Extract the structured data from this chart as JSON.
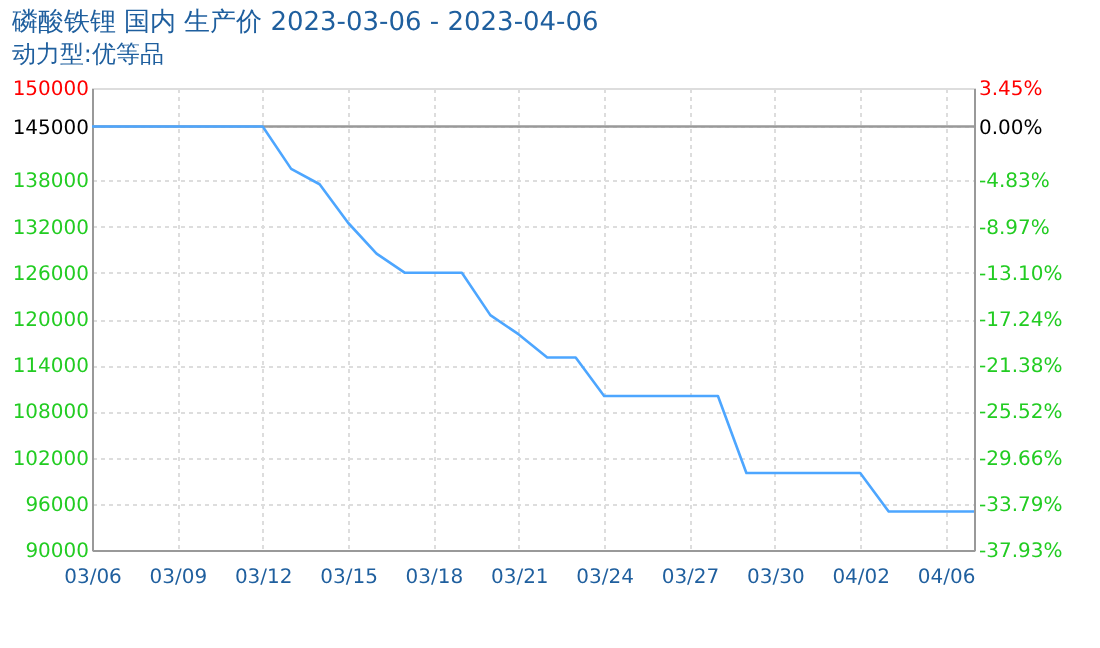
{
  "chart_data": {
    "type": "line",
    "title": "磷酸铁锂 国内 生产价 2023-03-06 - 2023-04-06",
    "subtitle": "动力型:优等品",
    "x": [
      "2023-03-06",
      "2023-03-07",
      "2023-03-08",
      "2023-03-09",
      "2023-03-10",
      "2023-03-11",
      "2023-03-12",
      "2023-03-13",
      "2023-03-14",
      "2023-03-15",
      "2023-03-16",
      "2023-03-17",
      "2023-03-18",
      "2023-03-19",
      "2023-03-20",
      "2023-03-21",
      "2023-03-22",
      "2023-03-23",
      "2023-03-24",
      "2023-03-25",
      "2023-03-26",
      "2023-03-27",
      "2023-03-28",
      "2023-03-29",
      "2023-03-30",
      "2023-03-31",
      "2023-04-01",
      "2023-04-02",
      "2023-04-03",
      "2023-04-04",
      "2023-04-05",
      "2023-04-06"
    ],
    "series": [
      {
        "color": "#4da6ff",
        "values": [
          145000,
          145000,
          145000,
          145000,
          145000,
          145000,
          145000,
          139500,
          137500,
          132500,
          128500,
          126000,
          126000,
          126000,
          120500,
          118000,
          115000,
          115000,
          110000,
          110000,
          110000,
          110000,
          110000,
          100000,
          100000,
          100000,
          100000,
          100000,
          95000,
          95000,
          95000,
          95000
        ]
      }
    ],
    "xlim": [
      "2023-03-06",
      "2023-04-06"
    ],
    "xticks": [
      {
        "value": "2023-03-06",
        "label": "03/06"
      },
      {
        "value": "2023-03-09",
        "label": "03/09"
      },
      {
        "value": "2023-03-12",
        "label": "03/12"
      },
      {
        "value": "2023-03-15",
        "label": "03/15"
      },
      {
        "value": "2023-03-18",
        "label": "03/18"
      },
      {
        "value": "2023-03-21",
        "label": "03/21"
      },
      {
        "value": "2023-03-24",
        "label": "03/24"
      },
      {
        "value": "2023-03-27",
        "label": "03/27"
      },
      {
        "value": "2023-03-30",
        "label": "03/30"
      },
      {
        "value": "2023-04-02",
        "label": "04/02"
      },
      {
        "value": "2023-04-05",
        "label": "04/06"
      }
    ],
    "ylim": [
      90000,
      150000
    ],
    "yticks": [
      90000,
      96000,
      102000,
      108000,
      114000,
      120000,
      126000,
      132000,
      138000,
      145000,
      150000
    ],
    "y2lim": [
      -37.93,
      3.45
    ],
    "y2ticks": [
      {
        "value": -37.93,
        "label": "-37.93%"
      },
      {
        "value": -33.79,
        "label": "-33.79%"
      },
      {
        "value": -29.66,
        "label": "-29.66%"
      },
      {
        "value": -25.52,
        "label": "-25.52%"
      },
      {
        "value": -21.38,
        "label": "-21.38%"
      },
      {
        "value": -17.24,
        "label": "-17.24%"
      },
      {
        "value": -13.1,
        "label": "-13.10%"
      },
      {
        "value": -8.97,
        "label": "-8.97%"
      },
      {
        "value": -4.83,
        "label": "-4.83%"
      },
      {
        "value": 0,
        "label": "0.00%"
      },
      {
        "value": 3.45,
        "label": "3.45%"
      }
    ],
    "ref_lines": [
      {
        "axis": "y",
        "value": 145000,
        "color": "#999999"
      }
    ],
    "grid": true,
    "line_style": "solid",
    "marker": "none"
  }
}
